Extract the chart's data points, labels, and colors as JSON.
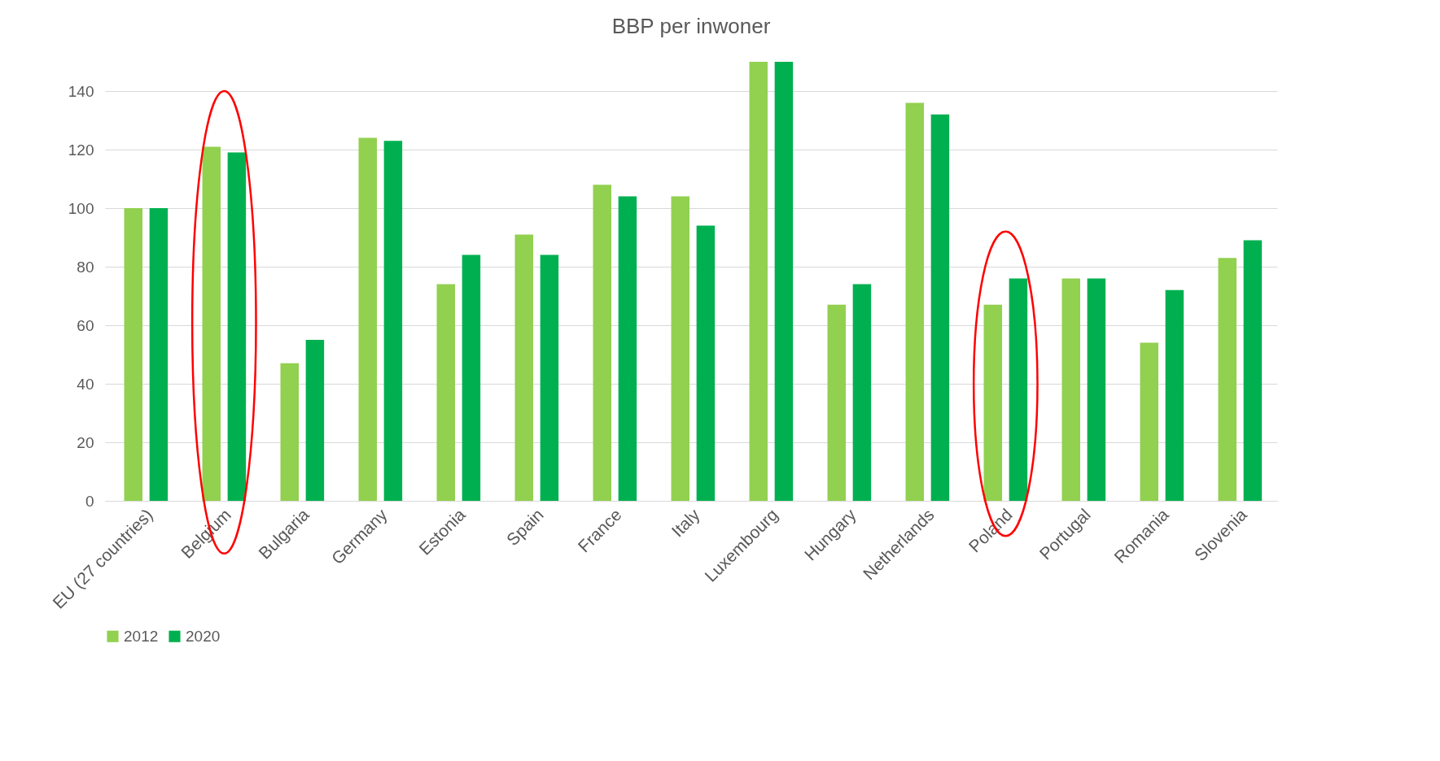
{
  "chart_data": {
    "type": "bar",
    "title": "BBP per inwoner",
    "categories": [
      "EU (27 countries)",
      "Belgium",
      "Bulgaria",
      "Germany",
      "Estonia",
      "Spain",
      "France",
      "Italy",
      "Luxembourg",
      "Hungary",
      "Netherlands",
      "Poland",
      "Portugal",
      "Romania",
      "Slovenia"
    ],
    "series": [
      {
        "name": "2012",
        "color": "#92d050",
        "values": [
          100,
          121,
          47,
          124,
          74,
          91,
          108,
          104,
          150,
          67,
          136,
          67,
          76,
          54,
          83
        ]
      },
      {
        "name": "2020",
        "color": "#00b050",
        "values": [
          100,
          119,
          55,
          123,
          84,
          84,
          104,
          94,
          150,
          74,
          132,
          76,
          76,
          72,
          89
        ]
      }
    ],
    "ylim": [
      0,
      150
    ],
    "yticks": [
      0,
      20,
      40,
      60,
      80,
      100,
      120,
      140
    ],
    "grid": "y",
    "legend": "bottom"
  }
}
